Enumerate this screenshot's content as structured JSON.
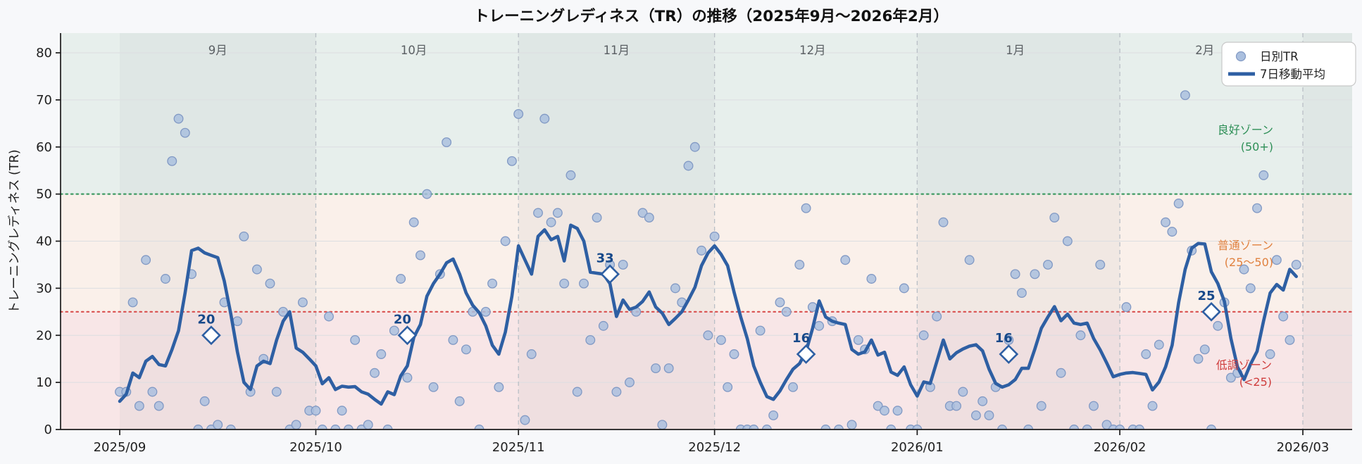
{
  "title": "トレーニングレディネス（TR）の推移（2025年9月〜2026年2月）",
  "y_axis": {
    "label": "トレーニングレディネス (TR)",
    "ticks": [
      0,
      10,
      20,
      30,
      40,
      50,
      60,
      70,
      80
    ]
  },
  "x_axis": {
    "ticks": [
      {
        "label": "2025/09",
        "date": "2025-09-01"
      },
      {
        "label": "2025/10",
        "date": "2025-10-01"
      },
      {
        "label": "2025/11",
        "date": "2025-11-01"
      },
      {
        "label": "2025/12",
        "date": "2025-12-01"
      },
      {
        "label": "2026/01",
        "date": "2026-01-01"
      },
      {
        "label": "2026/02",
        "date": "2026-02-01"
      },
      {
        "label": "2026/03",
        "date": "2026-03-01"
      }
    ]
  },
  "month_labels": [
    {
      "label": "9月",
      "date": "2025-09-16"
    },
    {
      "label": "10月",
      "date": "2025-10-16"
    },
    {
      "label": "11月",
      "date": "2025-11-16"
    },
    {
      "label": "12月",
      "date": "2025-12-16"
    },
    {
      "label": "1月",
      "date": "2026-01-16"
    },
    {
      "label": "2月",
      "date": "2026-02-14"
    }
  ],
  "legend": {
    "daily": "日別TR",
    "ma": "7日移動平均"
  },
  "zones": {
    "good": {
      "label": "良好ゾーン",
      "range": "(50+)",
      "threshold": 50,
      "color": "#e7efec",
      "line_color": "#3f9b63",
      "text_color": "#2e8f57"
    },
    "normal": {
      "label": "普通ゾーン",
      "range": "(25〜50)",
      "color": "#faf0ea",
      "text_color": "#e0813f"
    },
    "low": {
      "label": "低調ゾーン",
      "range": "(<25)",
      "threshold": 25,
      "color": "#f8e6e7",
      "line_color": "#d9504f",
      "text_color": "#cf3d3d"
    }
  },
  "colors": {
    "figure_bg": "#f7f8fa",
    "ma_line": "#2e5fa3",
    "scatter_fill": "#aabfde",
    "scatter_stroke": "#8199c4",
    "month_band": "rgba(70,100,90,0.05)",
    "grid": "#dcdee1",
    "separator": "#b9bfc6",
    "axis": "#1b1b1b",
    "tick_label": "#1f1f1f",
    "month_label": "#5a5f63",
    "marker_label": "#17498a",
    "marker_fill": "#ffffff"
  },
  "chart_data": {
    "type": "scatter+line",
    "title": "トレーニングレディネス（TR）の推移（2025年9月〜2026年2月）",
    "xlabel": "",
    "ylabel": "トレーニングレディネス (TR)",
    "ylim": [
      0,
      84.2
    ],
    "x_range": [
      "2025-08-23",
      "2026-03-09"
    ],
    "grid": true,
    "legend_position": "upper right",
    "month_separators": [
      "2025-10-01",
      "2025-11-01",
      "2025-12-01",
      "2026-01-01",
      "2026-02-01",
      "2026-03-01"
    ],
    "shaded_months": [
      [
        "2025-09-01",
        "2025-10-01"
      ],
      [
        "2025-11-01",
        "2025-12-01"
      ],
      [
        "2026-01-01",
        "2026-02-01"
      ],
      [
        "2026-03-01",
        "2026-03-09"
      ]
    ],
    "series": [
      {
        "name": "日別TR",
        "type": "scatter",
        "start": "2025-09-01",
        "values": [
          8,
          8,
          27,
          5,
          36,
          8,
          5,
          32,
          57,
          66,
          63,
          33,
          0,
          6,
          0,
          1,
          27,
          0,
          23,
          41,
          8,
          34,
          15,
          31,
          8,
          25,
          0,
          1,
          27,
          4,
          4,
          0,
          24,
          0,
          4,
          0,
          19,
          0,
          1,
          12,
          16,
          0,
          21,
          32,
          11,
          44,
          37,
          50,
          9,
          33,
          61,
          19,
          6,
          17,
          25,
          0,
          25,
          31,
          9,
          40,
          57,
          67,
          2,
          16,
          46,
          66,
          44,
          46,
          31,
          54,
          8,
          31,
          19,
          45,
          22,
          35,
          8,
          35,
          10,
          25,
          46,
          45,
          13,
          1,
          13,
          30,
          27,
          56,
          60,
          38,
          20,
          41,
          19,
          9,
          16,
          0,
          0,
          0,
          21,
          0,
          3,
          27,
          25,
          9,
          35,
          47,
          26,
          22,
          0,
          23,
          0,
          36,
          1,
          19,
          17,
          32,
          5,
          4,
          0,
          4,
          30,
          0,
          0,
          20,
          9,
          24,
          44,
          5,
          5,
          8,
          36,
          3,
          6,
          3,
          9,
          0,
          19,
          33,
          29,
          0,
          33,
          5,
          35,
          45,
          12,
          40,
          0,
          20,
          0,
          5,
          35,
          1,
          0,
          0,
          26,
          0,
          0,
          16,
          5,
          18,
          44,
          42,
          48,
          71,
          38,
          15,
          17,
          0,
          22,
          27,
          11,
          12,
          34,
          30,
          47,
          54,
          16,
          36,
          24,
          19,
          35
        ]
      },
      {
        "name": "7日移動平均",
        "type": "line",
        "start": "2025-09-01",
        "values": [
          6,
          7.5,
          12,
          11,
          14.5,
          15.5,
          13.8,
          13.5,
          17,
          21,
          29,
          38,
          38.5,
          37.5,
          37,
          36.5,
          31.5,
          24.5,
          16.5,
          10,
          8.5,
          13.5,
          14.5,
          14,
          19,
          23,
          25,
          17.3,
          16.4,
          15,
          13.5,
          9.7,
          11,
          8.5,
          9.2,
          9,
          9.1,
          8,
          7.5,
          6.4,
          5.4,
          8,
          7.4,
          11.4,
          13.5,
          19.6,
          22.3,
          28.3,
          31,
          33,
          35.4,
          36.2,
          33,
          29,
          26.4,
          24.8,
          22,
          17.9,
          16,
          20.7,
          28.3,
          39,
          36,
          33,
          41,
          42.4,
          40.3,
          41,
          35.8,
          43.4,
          42.7,
          40,
          33.4,
          33.2,
          33,
          31,
          24,
          27.5,
          25.5,
          26,
          27.2,
          29.2,
          26,
          24.7,
          22.3,
          23.6,
          25,
          27.5,
          30.2,
          34.8,
          37.5,
          39,
          37.2,
          34.8,
          29.1,
          23.9,
          19.3,
          13.5,
          10,
          7,
          6.4,
          8.2,
          10.6,
          12.8,
          14,
          16.6,
          21.5,
          27.3,
          23.9,
          23,
          22.6,
          22.3,
          17,
          16,
          16.5,
          19,
          15.8,
          16.4,
          12.2,
          11.5,
          13.3,
          9.5,
          7.1,
          10.1,
          9.8,
          14.4,
          19,
          15,
          16.3,
          17.1,
          17.7,
          18,
          16.7,
          12.8,
          9.8,
          9,
          9.5,
          10.6,
          13,
          13,
          17.1,
          21.5,
          23.9,
          26.1,
          23.1,
          24.5,
          22.6,
          22.3,
          22.6,
          19.3,
          16.9,
          14.1,
          11.2,
          11.7,
          12,
          12.1,
          11.9,
          11.7,
          8.4,
          10.1,
          13.3,
          17.9,
          27,
          34,
          38.5,
          39.5,
          39.4,
          33.5,
          31,
          27.2,
          19.3,
          13.3,
          10.6,
          13.9,
          16.6,
          23.1,
          29,
          30.8,
          29.6,
          34,
          32.5
        ]
      }
    ],
    "monthly_avg_markers": [
      {
        "date": "2025-09-15",
        "value": 20
      },
      {
        "date": "2025-10-15",
        "value": 20
      },
      {
        "date": "2025-11-15",
        "value": 33
      },
      {
        "date": "2025-12-15",
        "value": 16
      },
      {
        "date": "2026-01-15",
        "value": 16
      },
      {
        "date": "2026-02-15",
        "value": 25
      }
    ]
  }
}
